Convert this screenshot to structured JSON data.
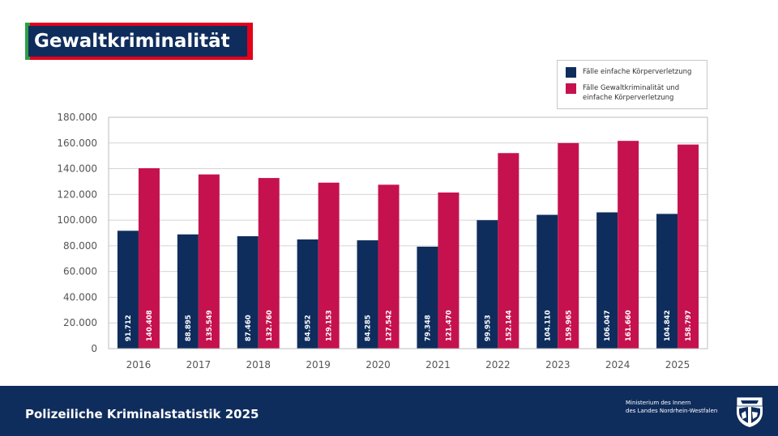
{
  "header": {
    "title": "Gewaltkriminalität"
  },
  "legend": {
    "series1": "Fälle einfache Körperverletzung",
    "series2": "Fälle Gewaltkriminalität und einfache Körperverletzung"
  },
  "chart_data": {
    "type": "bar",
    "title": "Gewaltkriminalität",
    "xlabel": "",
    "ylabel": "",
    "ylim": [
      0,
      180000
    ],
    "categories": [
      "2016",
      "2017",
      "2018",
      "2019",
      "2020",
      "2021",
      "2022",
      "2023",
      "2024",
      "2025"
    ],
    "y_ticks": [
      0,
      20000,
      40000,
      60000,
      80000,
      100000,
      120000,
      140000,
      160000,
      180000
    ],
    "y_tick_labels": [
      "0",
      "20.000",
      "40.000",
      "60.000",
      "80.000",
      "100.000",
      "120.000",
      "140.000",
      "160.000",
      "180.000"
    ],
    "series": [
      {
        "name": "Fälle einfache Körperverletzung",
        "color": "#0f2d5c",
        "values": [
          91712,
          88895,
          87460,
          84952,
          84285,
          79348,
          99953,
          104110,
          106047,
          104842
        ],
        "labels": [
          "91.712",
          "88.895",
          "87.460",
          "84.952",
          "84.285",
          "79.348",
          "99.953",
          "104.110",
          "106.047",
          "104.842"
        ]
      },
      {
        "name": "Fälle Gewaltkriminalität und einfache Körperverletzung",
        "color": "#c5124f",
        "values": [
          140408,
          135549,
          132760,
          129153,
          127542,
          121470,
          152144,
          159965,
          161660,
          158797
        ],
        "labels": [
          "140.408",
          "135.549",
          "132.760",
          "129.153",
          "127.542",
          "121.470",
          "152.144",
          "159.965",
          "161.660",
          "158.797"
        ]
      }
    ],
    "grid": true,
    "legend_position": "top-right"
  },
  "footer": {
    "title": "Polizeiliche Kriminalstatistik 2025",
    "ministry_line1": "Ministerium des Innern",
    "ministry_line2": "des Landes Nordrhein-Westfalen"
  },
  "colors": {
    "navy": "#0f2d5c",
    "crimson": "#c5124f",
    "green": "#2f9e46",
    "red": "#e3001b"
  },
  "icons": {
    "crest": "nrw-crest-icon"
  }
}
